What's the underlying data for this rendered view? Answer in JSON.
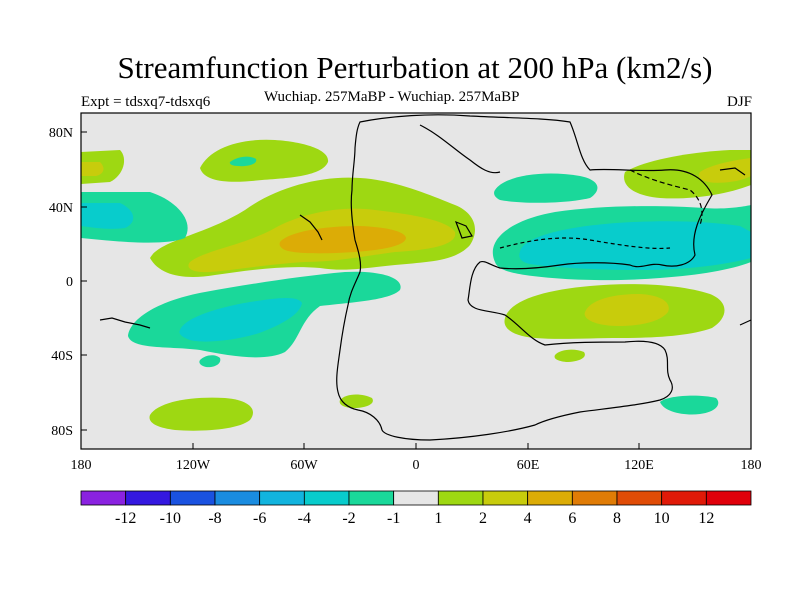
{
  "title": "Streamfunction Perturbation at 200 hPa (km2/s)",
  "subtitle_left": "Expt = tdsxq7-tdsxq6",
  "subtitle_center": "Wuchiap. 257MaBP - Wuchiap. 257MaBP",
  "subtitle_right": "DJF",
  "map": {
    "background_color": "#e6e6e6",
    "lat_ticks": [
      "80N",
      "40N",
      "0",
      "40S",
      "80S"
    ],
    "lon_ticks": [
      "180",
      "120W",
      "60W",
      "0",
      "60E",
      "120E",
      "180"
    ]
  },
  "colorbar": {
    "labels": [
      "-12",
      "-10",
      "-8",
      "-6",
      "-4",
      "-2",
      "-1",
      "1",
      "2",
      "4",
      "6",
      "8",
      "10",
      "12"
    ],
    "colors": [
      "#8a22e0",
      "#3418e0",
      "#1a52e0",
      "#1a8ce0",
      "#12b4de",
      "#08cccc",
      "#1ad89a",
      "#e6e6e6",
      "#9ed812",
      "#c8cc0c",
      "#dcac06",
      "#e07c06",
      "#e04c06",
      "#e01a08",
      "#e0000a"
    ]
  },
  "contours": [
    {
      "name": "contour-nh-green-band",
      "level": "1",
      "color": "#9ed812"
    },
    {
      "name": "contour-nh-yellow",
      "level": "2",
      "color": "#c8cc0c"
    },
    {
      "name": "contour-nh-orange",
      "level": "4",
      "color": "#dcac06"
    },
    {
      "name": "contour-sh-teal-band",
      "level": "-1",
      "color": "#1ad89a"
    },
    {
      "name": "contour-sh-cyan",
      "level": "-2",
      "color": "#08cccc"
    },
    {
      "name": "contour-asia-teal-band",
      "level": "-1",
      "color": "#1ad89a"
    },
    {
      "name": "contour-asia-cyan",
      "level": "-2",
      "color": "#08cccc"
    },
    {
      "name": "contour-io-green-band",
      "level": "1",
      "color": "#9ed812"
    },
    {
      "name": "contour-io-yellow",
      "level": "2",
      "color": "#c8cc0c"
    }
  ]
}
